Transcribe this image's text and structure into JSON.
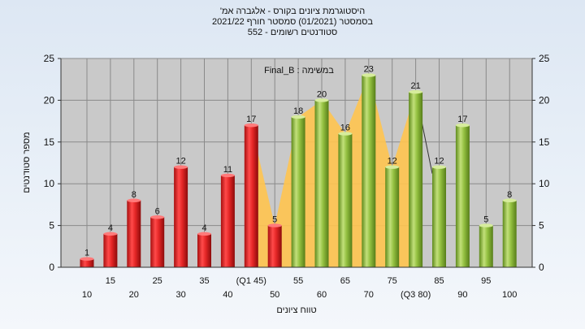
{
  "chart_data": {
    "type": "bar",
    "title_lines": [
      "'היסטוגרמת ציונים בקורס - אלגברה אמ",
      "בסמסטר (01/2021) סמסטר חורף 2021/22",
      "552 - סטודנטים רשומים"
    ],
    "xlabel": "טווח ציונים",
    "ylabel": "מספר סטודנטים",
    "legend": "Final_B : במשימה",
    "ylim": [
      0,
      25
    ],
    "yticks": [
      0,
      5,
      10,
      15,
      20,
      25
    ],
    "grid": true,
    "categories": [
      "10",
      "15",
      "20",
      "25",
      "30",
      "35",
      "40",
      "45",
      "50",
      "55",
      "60",
      "65",
      "70",
      "75",
      "80",
      "85",
      "90",
      "95",
      "100"
    ],
    "x_tick_labels": [
      "10",
      "15",
      "20",
      "25",
      "30",
      "35",
      "40",
      "(Q1 45)",
      "50",
      "55",
      "60",
      "65",
      "70",
      "75",
      "(Q3 80)",
      "85",
      "90",
      "95",
      "100"
    ],
    "values": [
      1,
      4,
      8,
      6,
      12,
      4,
      11,
      17,
      5,
      18,
      20,
      16,
      23,
      12,
      21,
      12,
      17,
      5,
      8
    ],
    "bar_colors": [
      "red",
      "red",
      "red",
      "red",
      "red",
      "red",
      "red",
      "red",
      "red",
      "green",
      "green",
      "green",
      "green",
      "green",
      "green",
      "green",
      "green",
      "green",
      "green"
    ],
    "quartile_band": {
      "from_index": 7,
      "to_index": 14,
      "color": "#ffc44f"
    },
    "colors": {
      "plot_bg": "#c9c9c9",
      "red_bar": "#dd2424",
      "green_bar": "#8dbb3c",
      "band": "#ffc44f"
    }
  }
}
